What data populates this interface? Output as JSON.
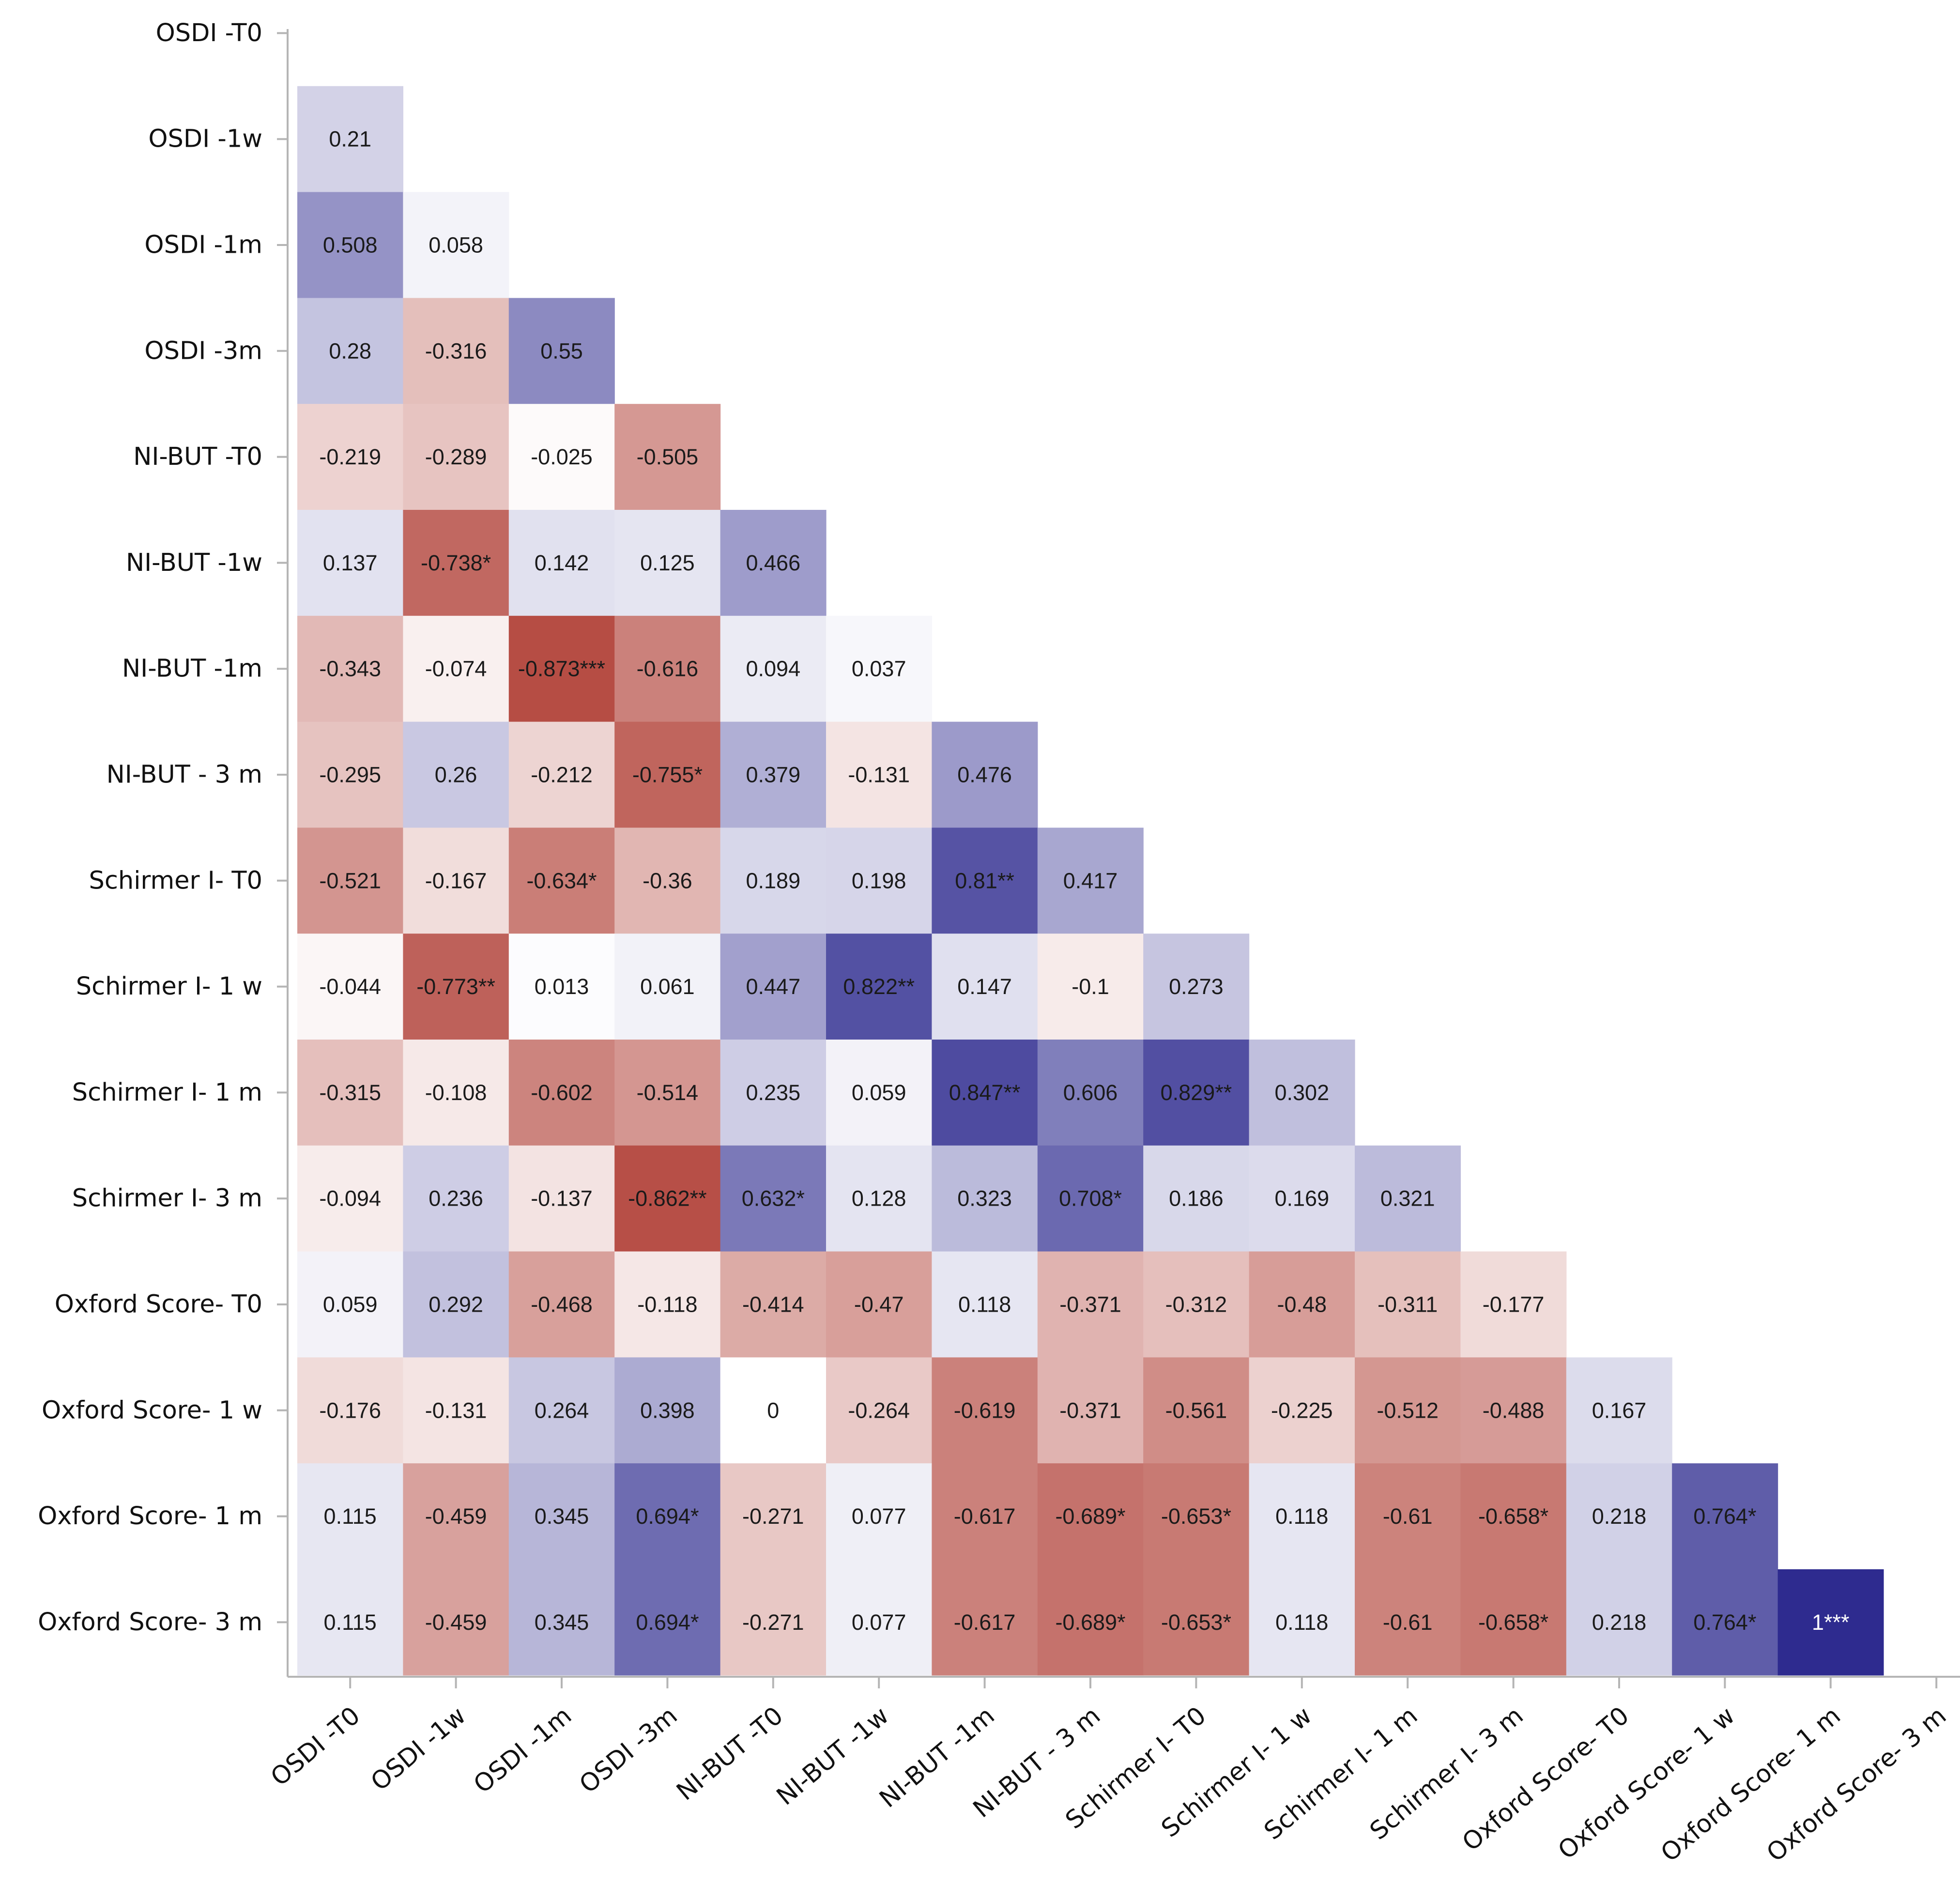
{
  "chart_data": {
    "type": "heatmap",
    "subtype": "lower-triangular correlation matrix",
    "title": "",
    "xlabel": "",
    "ylabel": "",
    "value_range": [
      -1,
      1
    ],
    "colors": {
      "negative": "#ab3329",
      "zero": "#ffffff",
      "positive": "#2e2b8f"
    },
    "row_labels": [
      "OSDI -T0",
      "OSDI -1w",
      "OSDI -1m",
      "OSDI -3m",
      "NI-BUT -T0",
      "NI-BUT -1w",
      "NI-BUT -1m",
      "NI-BUT - 3 m",
      "Schirmer I- T0",
      "Schirmer I- 1 w",
      "Schirmer I- 1 m",
      "Schirmer I- 3 m",
      "Oxford Score- T0",
      "Oxford Score- 1 w",
      "Oxford Score- 1 m",
      "Oxford Score- 3 m"
    ],
    "col_labels": [
      "OSDI -T0",
      "OSDI -1w",
      "OSDI -1m",
      "OSDI -3m",
      "NI-BUT -T0",
      "NI-BUT -1w",
      "NI-BUT -1m",
      "NI-BUT - 3 m",
      "Schirmer I- T0",
      "Schirmer I- 1 w",
      "Schirmer I- 1 m",
      "Schirmer I- 3 m",
      "Oxford Score- T0",
      "Oxford Score- 1 w",
      "Oxford Score- 1 m",
      "Oxford Score- 3 m"
    ],
    "cells": [
      [],
      [
        {
          "label": "0.21",
          "value": 0.21
        }
      ],
      [
        {
          "label": "0.508",
          "value": 0.508
        },
        {
          "label": "0.058",
          "value": 0.058
        }
      ],
      [
        {
          "label": "0.28",
          "value": 0.28
        },
        {
          "label": "-0.316",
          "value": -0.316
        },
        {
          "label": "0.55",
          "value": 0.55
        }
      ],
      [
        {
          "label": "-0.219",
          "value": -0.219
        },
        {
          "label": "-0.289",
          "value": -0.289
        },
        {
          "label": "-0.025",
          "value": -0.025
        },
        {
          "label": "-0.505",
          "value": -0.505
        }
      ],
      [
        {
          "label": "0.137",
          "value": 0.137
        },
        {
          "label": "-0.738*",
          "value": -0.738
        },
        {
          "label": "0.142",
          "value": 0.142
        },
        {
          "label": "0.125",
          "value": 0.125
        },
        {
          "label": "0.466",
          "value": 0.466
        }
      ],
      [
        {
          "label": "-0.343",
          "value": -0.343
        },
        {
          "label": "-0.074",
          "value": -0.074
        },
        {
          "label": "-0.873***",
          "value": -0.873
        },
        {
          "label": "-0.616",
          "value": -0.616
        },
        {
          "label": "0.094",
          "value": 0.094
        },
        {
          "label": "0.037",
          "value": 0.037
        }
      ],
      [
        {
          "label": "-0.295",
          "value": -0.295
        },
        {
          "label": "0.26",
          "value": 0.26
        },
        {
          "label": "-0.212",
          "value": -0.212
        },
        {
          "label": "-0.755*",
          "value": -0.755
        },
        {
          "label": "0.379",
          "value": 0.379
        },
        {
          "label": "-0.131",
          "value": -0.131
        },
        {
          "label": "0.476",
          "value": 0.476
        }
      ],
      [
        {
          "label": "-0.521",
          "value": -0.521
        },
        {
          "label": "-0.167",
          "value": -0.167
        },
        {
          "label": "-0.634*",
          "value": -0.634
        },
        {
          "label": "-0.36",
          "value": -0.36
        },
        {
          "label": "0.189",
          "value": 0.189
        },
        {
          "label": "0.198",
          "value": 0.198
        },
        {
          "label": "0.81**",
          "value": 0.81
        },
        {
          "label": "0.417",
          "value": 0.417
        }
      ],
      [
        {
          "label": "-0.044",
          "value": -0.044
        },
        {
          "label": "-0.773**",
          "value": -0.773
        },
        {
          "label": "0.013",
          "value": 0.013
        },
        {
          "label": "0.061",
          "value": 0.061
        },
        {
          "label": "0.447",
          "value": 0.447
        },
        {
          "label": "0.822**",
          "value": 0.822
        },
        {
          "label": "0.147",
          "value": 0.147
        },
        {
          "label": "-0.1",
          "value": -0.1
        },
        {
          "label": "0.273",
          "value": 0.273
        }
      ],
      [
        {
          "label": "-0.315",
          "value": -0.315
        },
        {
          "label": "-0.108",
          "value": -0.108
        },
        {
          "label": "-0.602",
          "value": -0.602
        },
        {
          "label": "-0.514",
          "value": -0.514
        },
        {
          "label": "0.235",
          "value": 0.235
        },
        {
          "label": "0.059",
          "value": 0.059
        },
        {
          "label": "0.847**",
          "value": 0.847
        },
        {
          "label": "0.606",
          "value": 0.606
        },
        {
          "label": "0.829**",
          "value": 0.829
        },
        {
          "label": "0.302",
          "value": 0.302
        }
      ],
      [
        {
          "label": "-0.094",
          "value": -0.094
        },
        {
          "label": "0.236",
          "value": 0.236
        },
        {
          "label": "-0.137",
          "value": -0.137
        },
        {
          "label": "-0.862**",
          "value": -0.862
        },
        {
          "label": "0.632*",
          "value": 0.632
        },
        {
          "label": "0.128",
          "value": 0.128
        },
        {
          "label": "0.323",
          "value": 0.323
        },
        {
          "label": "0.708*",
          "value": 0.708
        },
        {
          "label": "0.186",
          "value": 0.186
        },
        {
          "label": "0.169",
          "value": 0.169
        },
        {
          "label": "0.321",
          "value": 0.321
        }
      ],
      [
        {
          "label": "0.059",
          "value": 0.059
        },
        {
          "label": "0.292",
          "value": 0.292
        },
        {
          "label": "-0.468",
          "value": -0.468
        },
        {
          "label": "-0.118",
          "value": -0.118
        },
        {
          "label": "-0.414",
          "value": -0.414
        },
        {
          "label": "-0.47",
          "value": -0.47
        },
        {
          "label": "0.118",
          "value": 0.118
        },
        {
          "label": "-0.371",
          "value": -0.371
        },
        {
          "label": "-0.312",
          "value": -0.312
        },
        {
          "label": "-0.48",
          "value": -0.48
        },
        {
          "label": "-0.311",
          "value": -0.311
        },
        {
          "label": "-0.177",
          "value": -0.177
        }
      ],
      [
        {
          "label": "-0.176",
          "value": -0.176
        },
        {
          "label": "-0.131",
          "value": -0.131
        },
        {
          "label": "0.264",
          "value": 0.264
        },
        {
          "label": "0.398",
          "value": 0.398
        },
        {
          "label": "0",
          "value": 0
        },
        {
          "label": "-0.264",
          "value": -0.264
        },
        {
          "label": "-0.619",
          "value": -0.619
        },
        {
          "label": "-0.371",
          "value": -0.371
        },
        {
          "label": "-0.561",
          "value": -0.561
        },
        {
          "label": "-0.225",
          "value": -0.225
        },
        {
          "label": "-0.512",
          "value": -0.512
        },
        {
          "label": "-0.488",
          "value": -0.488
        },
        {
          "label": "0.167",
          "value": 0.167
        }
      ],
      [
        {
          "label": "0.115",
          "value": 0.115
        },
        {
          "label": "-0.459",
          "value": -0.459
        },
        {
          "label": "0.345",
          "value": 0.345
        },
        {
          "label": "0.694*",
          "value": 0.694
        },
        {
          "label": "-0.271",
          "value": -0.271
        },
        {
          "label": "0.077",
          "value": 0.077
        },
        {
          "label": "-0.617",
          "value": -0.617
        },
        {
          "label": "-0.689*",
          "value": -0.689
        },
        {
          "label": "-0.653*",
          "value": -0.653
        },
        {
          "label": "0.118",
          "value": 0.118
        },
        {
          "label": "-0.61",
          "value": -0.61
        },
        {
          "label": "-0.658*",
          "value": -0.658
        },
        {
          "label": "0.218",
          "value": 0.218
        },
        {
          "label": "0.764*",
          "value": 0.764
        }
      ],
      [
        {
          "label": "0.115",
          "value": 0.115
        },
        {
          "label": "-0.459",
          "value": -0.459
        },
        {
          "label": "0.345",
          "value": 0.345
        },
        {
          "label": "0.694*",
          "value": 0.694
        },
        {
          "label": "-0.271",
          "value": -0.271
        },
        {
          "label": "0.077",
          "value": 0.077
        },
        {
          "label": "-0.617",
          "value": -0.617
        },
        {
          "label": "-0.689*",
          "value": -0.689
        },
        {
          "label": "-0.653*",
          "value": -0.653
        },
        {
          "label": "0.118",
          "value": 0.118
        },
        {
          "label": "-0.61",
          "value": -0.61
        },
        {
          "label": "-0.658*",
          "value": -0.658
        },
        {
          "label": "0.218",
          "value": 0.218
        },
        {
          "label": "0.764*",
          "value": 0.764
        },
        {
          "label": "1***",
          "value": 1
        }
      ]
    ]
  }
}
